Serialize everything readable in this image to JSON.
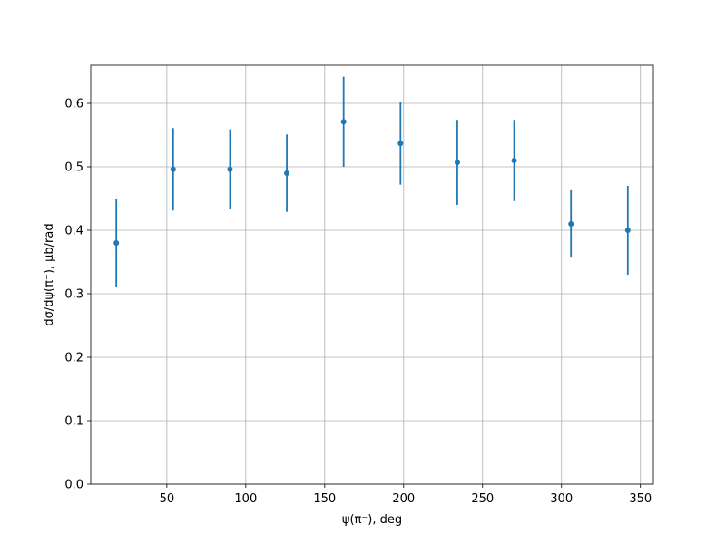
{
  "chart_data": {
    "type": "errorbar",
    "x_label": "ψ(π⁻), deg",
    "y_label": "dσ/dψ(π⁻), μb/rad",
    "x": [
      18,
      54,
      90,
      126,
      162,
      198,
      234,
      270,
      306,
      342
    ],
    "values": [
      0.38,
      0.496,
      0.496,
      0.49,
      0.571,
      0.537,
      0.507,
      0.51,
      0.41,
      0.4
    ],
    "errors": [
      0.07,
      0.065,
      0.063,
      0.061,
      0.071,
      0.065,
      0.067,
      0.064,
      0.053,
      0.07
    ],
    "color": "#1f77b4",
    "xlim": [
      1.8,
      358.2
    ],
    "xticks": [
      50,
      100,
      150,
      200,
      250,
      300,
      350
    ],
    "ylim": [
      0,
      0.66
    ],
    "yticks": [
      {
        "value": 0,
        "label": "0.0"
      },
      0.1,
      0.2,
      0.3,
      0.4,
      0.5,
      0.6
    ],
    "grid": true
  }
}
